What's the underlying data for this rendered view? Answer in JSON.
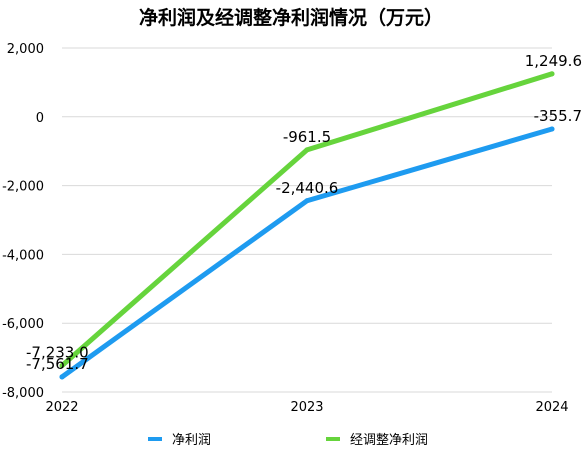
{
  "chart_data": {
    "type": "line",
    "title": "净利润及经调整净利润情况（万元）",
    "xlabel": "",
    "ylabel": "",
    "categories": [
      "2022",
      "2023",
      "2024"
    ],
    "ylim": [
      -8000,
      2000
    ],
    "yticks": [
      2000,
      0,
      -2000,
      -4000,
      -6000,
      -8000
    ],
    "ytick_labels": [
      "2,000",
      "0",
      "-2,000",
      "-4,000",
      "-6,000",
      "-8,000"
    ],
    "grid": true,
    "legend_position": "bottom",
    "series": [
      {
        "name": "净利润",
        "color": "#1E9BF0",
        "values": [
          -7561.7,
          -2440.6,
          -355.7
        ],
        "labels": [
          "-7,561.7",
          "-2,440.6",
          "-355.7"
        ]
      },
      {
        "name": "经调整净利润",
        "color": "#66D43C",
        "values": [
          -7233.0,
          -961.5,
          1249.6
        ],
        "labels": [
          "-7,233.0",
          "-961.5",
          "1,249.6"
        ]
      }
    ]
  }
}
